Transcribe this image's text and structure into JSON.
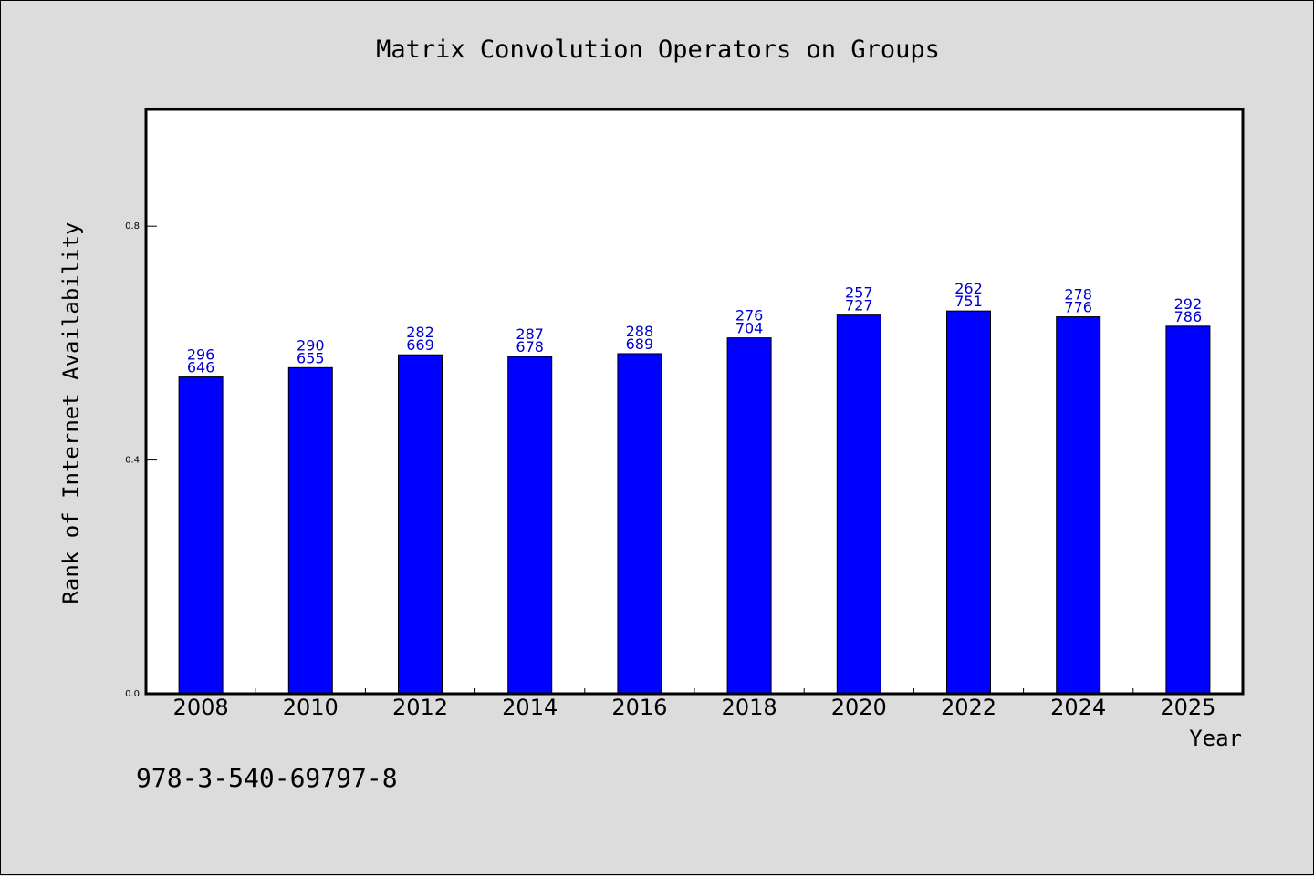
{
  "chart_data": {
    "type": "bar",
    "title": "Matrix Convolution Operators on Groups",
    "xlabel": "Year",
    "ylabel": "Rank of Internet Availability",
    "categories": [
      "2008",
      "2010",
      "2012",
      "2014",
      "2016",
      "2018",
      "2020",
      "2022",
      "2024",
      "2025"
    ],
    "values": [
      0.542,
      0.558,
      0.58,
      0.577,
      0.582,
      0.609,
      0.648,
      0.655,
      0.645,
      0.629
    ],
    "bar_labels": [
      [
        "296",
        "646"
      ],
      [
        "290",
        "655"
      ],
      [
        "282",
        "669"
      ],
      [
        "287",
        "678"
      ],
      [
        "288",
        "689"
      ],
      [
        "276",
        "704"
      ],
      [
        "257",
        "727"
      ],
      [
        "262",
        "751"
      ],
      [
        "278",
        "776"
      ],
      [
        "292",
        "786"
      ]
    ],
    "yticks": [
      0.0,
      0.4,
      0.8
    ],
    "ytick_labels": [
      "0.0",
      "0.4",
      "0.8"
    ],
    "ylim": [
      0,
      1.0
    ],
    "bar_color": "#0000ff",
    "label_color": "#0000cc",
    "grid": false
  },
  "footer": {
    "isbn": "978-3-540-69797-8"
  }
}
